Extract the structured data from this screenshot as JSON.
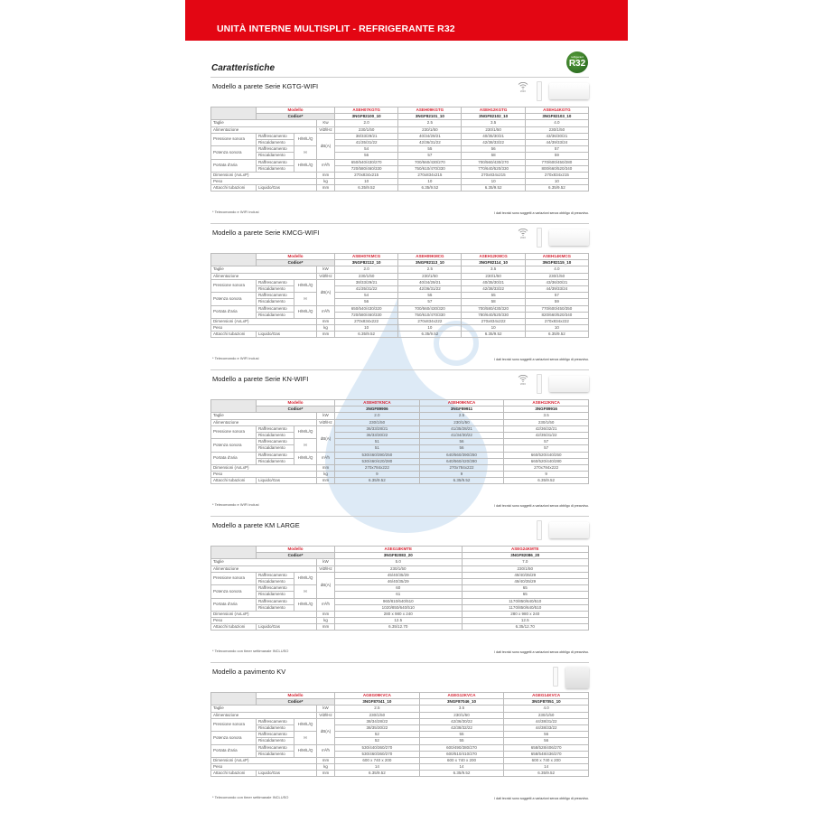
{
  "header": {
    "title": "UNITÀ INTERNE MULTISPLIT - REFRIGERANTE R32",
    "subtitle": "Caratteristiche",
    "badge_small": "refrigerant",
    "badge": "R32",
    "brand_color": "#e30613"
  },
  "labels": {
    "modello": "Modello",
    "codice": "Codice*",
    "taglie": "Taglie",
    "alimentazione": "Alimentazione",
    "pressione": "Pressione sonora",
    "raff": "Raffrescamento",
    "risc": "Riscaldamento",
    "hmlq": "H/M/L/Q",
    "dba": "dB(A)",
    "potenza": "Potenza sonora",
    "h": "H",
    "portata": "Portata d'aria",
    "m3h": "m³/h",
    "dimensioni": "Dimensioni (AxLxP)",
    "peso": "Peso",
    "kg": "kg",
    "attacchi": "Attacchi tubazioni",
    "liquido_gas": "Liquido/Gas",
    "mm": "mm",
    "vhz": "V/Ø/Hz",
    "wifi": "WIFI",
    "note": "I dati tecnici sono soggetti a variazioni senza obbligo di preavviso."
  },
  "sections": [
    {
      "title": "Modello a parete Serie KGTG-WIFI",
      "wifi": true,
      "floor": false,
      "kw_unit": "Kw",
      "footnote": "* Telecomando e WIFI inclusi",
      "models": [
        "ASEH07KGTG",
        "ASEH09KGTG",
        "ASEH12KGTG",
        "ASEH14KGTG"
      ],
      "codes": [
        "3NGF82100_10",
        "3NGF82101_10",
        "3NGF82102_10",
        "3NGF82103_10"
      ],
      "taglie": [
        "2.0",
        "2.5",
        "3.5",
        "4.0"
      ],
      "alim": [
        "230/1/50",
        "230/1/50",
        "230/1/50",
        "230/1/50"
      ],
      "press_raff": [
        "38/33/29/21",
        "40/34/29/21",
        "40/35/30/21",
        "43/36/30/21"
      ],
      "press_risc": [
        "41/35/31/22",
        "42/36/31/22",
        "42/38/33/22",
        "44/39/33/24"
      ],
      "pot_raff": [
        "54",
        "55",
        "56",
        "57"
      ],
      "pot_risc": [
        "56",
        "57",
        "58",
        "59"
      ],
      "port_raff": [
        "650/540/430/270",
        "700/560/430/270",
        "700/560/430/270",
        "770/600/450/280"
      ],
      "port_risc": [
        "720/580/460/330",
        "750/610/470/330",
        "770/640/520/330",
        "800/660/520/340"
      ],
      "dim": [
        "270x834x215",
        "270x834x215",
        "270x834x215",
        "270x834x215"
      ],
      "peso": [
        "10",
        "10",
        "10",
        "10"
      ],
      "attacchi": [
        "6.35/9.52",
        "6.35/9.52",
        "6.35/9.52",
        "6.35/9.52"
      ]
    },
    {
      "title": "Modello a parete Serie KMCG-WIFI",
      "wifi": true,
      "floor": false,
      "kw_unit": "kW",
      "footnote": "* Telecomando e WIFI inclusi",
      "models": [
        "ASEH07KMCG",
        "ASEH09KMCG",
        "ASEH12KMCG",
        "ASEH14KMCG"
      ],
      "codes": [
        "3NGF82112_10",
        "3NGF82113_10",
        "3NGF82114_10",
        "3NGF82115_10"
      ],
      "taglie": [
        "2.0",
        "2.5",
        "3.5",
        "4.0"
      ],
      "alim": [
        "230/1/50",
        "230/1/50",
        "230/1/50",
        "230/1/50"
      ],
      "press_raff": [
        "38/33/29/21",
        "40/34/29/21",
        "40/35/30/21",
        "43/36/30/21"
      ],
      "press_risc": [
        "41/35/31/22",
        "42/36/31/22",
        "42/38/33/22",
        "44/39/33/24"
      ],
      "pot_raff": [
        "54",
        "55",
        "55",
        "57"
      ],
      "pot_risc": [
        "56",
        "57",
        "58",
        "59"
      ],
      "port_raff": [
        "650/540/430/320",
        "700/560/430/320",
        "700/580/430/320",
        "770/600/450/350"
      ],
      "port_risc": [
        "720/580/460/330",
        "750/610/470/330",
        "780/640/520/330",
        "820/660/520/340"
      ],
      "dim": [
        "270x834x222",
        "270x834x222",
        "270x834x222",
        "270x834x222"
      ],
      "peso": [
        "10",
        "10",
        "10",
        "10"
      ],
      "attacchi": [
        "6.35/9.52",
        "6.35/9.52",
        "6.35/9.52",
        "6.35/9.52"
      ]
    },
    {
      "title": "Modello a parete Serie KN-WIFI",
      "wifi": true,
      "floor": false,
      "kw_unit": "kW",
      "footnote": "* Telecomando e WIFI inclusi",
      "models": [
        "ASEH07KNCA",
        "ASEH09KNCA",
        "ASEH12KNCA"
      ],
      "codes": [
        "3NGF89906",
        "3NGF89911",
        "3NGF89916"
      ],
      "taglie": [
        "2.0",
        "2.5",
        "3.5"
      ],
      "alim": [
        "230/1/50",
        "230/1/50",
        "230/1/50"
      ],
      "press_raff": [
        "36/33/28/21",
        "41/35/28/21",
        "42/36/32/21"
      ],
      "press_risc": [
        "36/33/30/22",
        "41/34/30/22",
        "42/35/31/22"
      ],
      "pot_raff": [
        "51",
        "56",
        "57"
      ],
      "pot_risc": [
        "51",
        "56",
        "57"
      ],
      "port_raff": [
        "530/460/390/250",
        "640/560/390/250",
        "660/520/440/250"
      ],
      "port_risc": [
        "530/460/420/280",
        "640/560/420/280",
        "660/520/440/280"
      ],
      "dim": [
        "270x784x222",
        "270x784x222",
        "270x784x222"
      ],
      "peso": [
        "9",
        "9",
        "9"
      ],
      "attacchi": [
        "6.35/9.52",
        "6.35/9.52",
        "6.35/9.52"
      ]
    },
    {
      "title": "Modello a parete KM LARGE",
      "wifi": false,
      "floor": false,
      "kw_unit": "kW",
      "footnote": "* Telecomando con timer settimanale INCLUSO",
      "models": [
        "ASEG18KMTE",
        "ASEG24KMTE"
      ],
      "codes": [
        "3NGF82083_20",
        "3NGF82086_20"
      ],
      "taglie": [
        "5.0",
        "7.0"
      ],
      "alim": [
        "230/1/50",
        "230/1/50"
      ],
      "press_raff": [
        "45/40/35/29",
        "49/40/35/29"
      ],
      "press_risc": [
        "46/40/35/29",
        "49/40/35/29"
      ],
      "pot_raff": [
        "60",
        "65"
      ],
      "pot_risc": [
        "61",
        "65"
      ],
      "port_raff": [
        "960/810/640/510",
        "1170/850/640/510"
      ],
      "port_risc": [
        "1020/850/640/510",
        "1170/850/640/510"
      ],
      "dim": [
        "280 x 980 x 240",
        "280 x 980 x 240"
      ],
      "peso": [
        "12.5",
        "12.5"
      ],
      "attacchi": [
        "6.35/12.70",
        "6.35/12.70"
      ]
    },
    {
      "title": "Modello a pavimento KV",
      "wifi": false,
      "floor": true,
      "kw_unit": "kW",
      "footnote": "* Telecomando con timer settimanale INCLUSO",
      "models": [
        "AGEG09KVCA",
        "AGEG12KVCA",
        "AGEG14KVCA"
      ],
      "codes": [
        "3NGF87041_10",
        "3NGF87046_10",
        "3NGF87051_10"
      ],
      "taglie": [
        "2.5",
        "3.5",
        "4.0"
      ],
      "alim": [
        "230/1/50",
        "230/1/50",
        "230/1/50"
      ],
      "press_raff": [
        "38/34/28/22",
        "42/36/30/22",
        "44/38/31/22"
      ],
      "press_risc": [
        "38/35/30/22",
        "42/38/32/22",
        "44/38/33/22"
      ],
      "pot_raff": [
        "52",
        "55",
        "56"
      ],
      "pot_risc": [
        "52",
        "55",
        "56"
      ],
      "port_raff": [
        "530/440/360/270",
        "600/490/380/270",
        "658/528/406/270"
      ],
      "port_risc": [
        "530/460/360/270",
        "600/510/410/270",
        "658/548/436/270"
      ],
      "dim": [
        "600 x 740 x 200",
        "600 x 740 x 200",
        "600 x 740 x 200"
      ],
      "peso": [
        "14",
        "14",
        "14"
      ],
      "attacchi": [
        "6.35/9.52",
        "6.35/9.52",
        "6.35/9.52"
      ]
    }
  ]
}
